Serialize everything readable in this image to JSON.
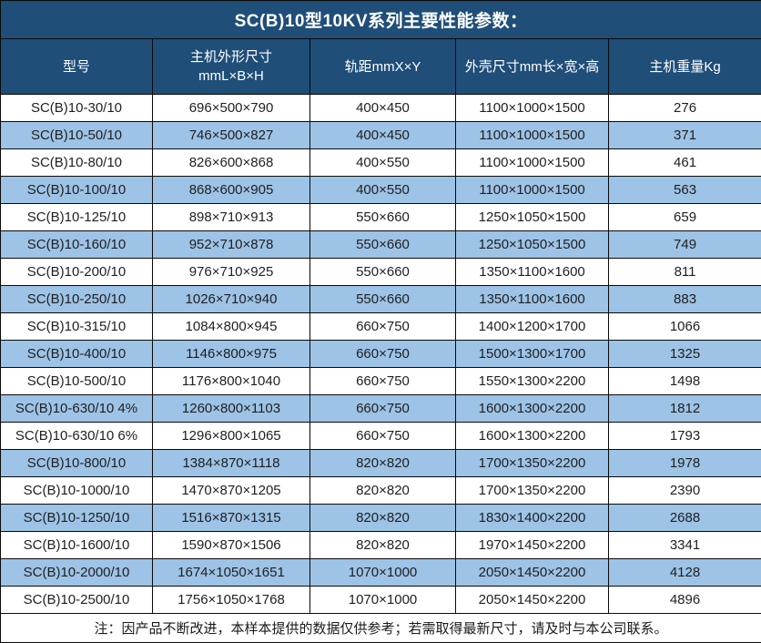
{
  "title": "SC(B)10型10KV系列主要性能参数：",
  "colors": {
    "header_bg": "#1F4E79",
    "alt_row_bg": "#9DC3E6",
    "header_text": "#FFFFFF",
    "body_text": "#1F1F1F",
    "border": "#0A0A0A"
  },
  "table": {
    "columns": [
      {
        "label": "型号"
      },
      {
        "label": "主机外形尺寸",
        "sub": "mmL×B×H"
      },
      {
        "label": "轨距mmX×Y"
      },
      {
        "label": "外壳尺寸mm长×宽×高"
      },
      {
        "label": "主机重量Kg"
      }
    ],
    "rows": [
      [
        "SC(B)10-30/10",
        "696×500×790",
        "400×450",
        "1100×1000×1500",
        "276"
      ],
      [
        "SC(B)10-50/10",
        "746×500×827",
        "400×450",
        "1100×1000×1500",
        "371"
      ],
      [
        "SC(B)10-80/10",
        "826×600×868",
        "400×550",
        "1100×1000×1500",
        "461"
      ],
      [
        "SC(B)10-100/10",
        "868×600×905",
        "400×550",
        "1100×1000×1500",
        "563"
      ],
      [
        "SC(B)10-125/10",
        "898×710×913",
        "550×660",
        "1250×1050×1500",
        "659"
      ],
      [
        "SC(B)10-160/10",
        "952×710×878",
        "550×660",
        "1250×1050×1500",
        "749"
      ],
      [
        "SC(B)10-200/10",
        "976×710×925",
        "550×660",
        "1350×1100×1600",
        "811"
      ],
      [
        "SC(B)10-250/10",
        "1026×710×940",
        "550×660",
        "1350×1100×1600",
        "883"
      ],
      [
        "SC(B)10-315/10",
        "1084×800×945",
        "660×750",
        "1400×1200×1700",
        "1066"
      ],
      [
        "SC(B)10-400/10",
        "1146×800×975",
        "660×750",
        "1500×1300×1700",
        "1325"
      ],
      [
        "SC(B)10-500/10",
        "1176×800×1040",
        "660×750",
        "1550×1300×2200",
        "1498"
      ],
      [
        "SC(B)10-630/10 4%",
        "1260×800×1103",
        "660×750",
        "1600×1300×2200",
        "1812"
      ],
      [
        "SC(B)10-630/10 6%",
        "1296×800×1065",
        "660×750",
        "1600×1300×2200",
        "1793"
      ],
      [
        "SC(B)10-800/10",
        "1384×870×1118",
        "820×820",
        "1700×1350×2200",
        "1978"
      ],
      [
        "SC(B)10-1000/10",
        "1470×870×1205",
        "820×820",
        "1700×1350×2200",
        "2390"
      ],
      [
        "SC(B)10-1250/10",
        "1516×870×1315",
        "820×820",
        "1830×1400×2200",
        "2688"
      ],
      [
        "SC(B)10-1600/10",
        "1590×870×1506",
        "820×820",
        "1970×1450×2200",
        "3341"
      ],
      [
        "SC(B)10-2000/10",
        "1674×1050×1651",
        "1070×1000",
        "2050×1450×2200",
        "4128"
      ],
      [
        "SC(B)10-2500/10",
        "1756×1050×1768",
        "1070×1000",
        "2050×1450×2200",
        "4896"
      ]
    ]
  },
  "note": "注：因产品不断改进，本样本提供的数据仅供参考；若需取得最新尺寸，请及时与本公司联系。"
}
